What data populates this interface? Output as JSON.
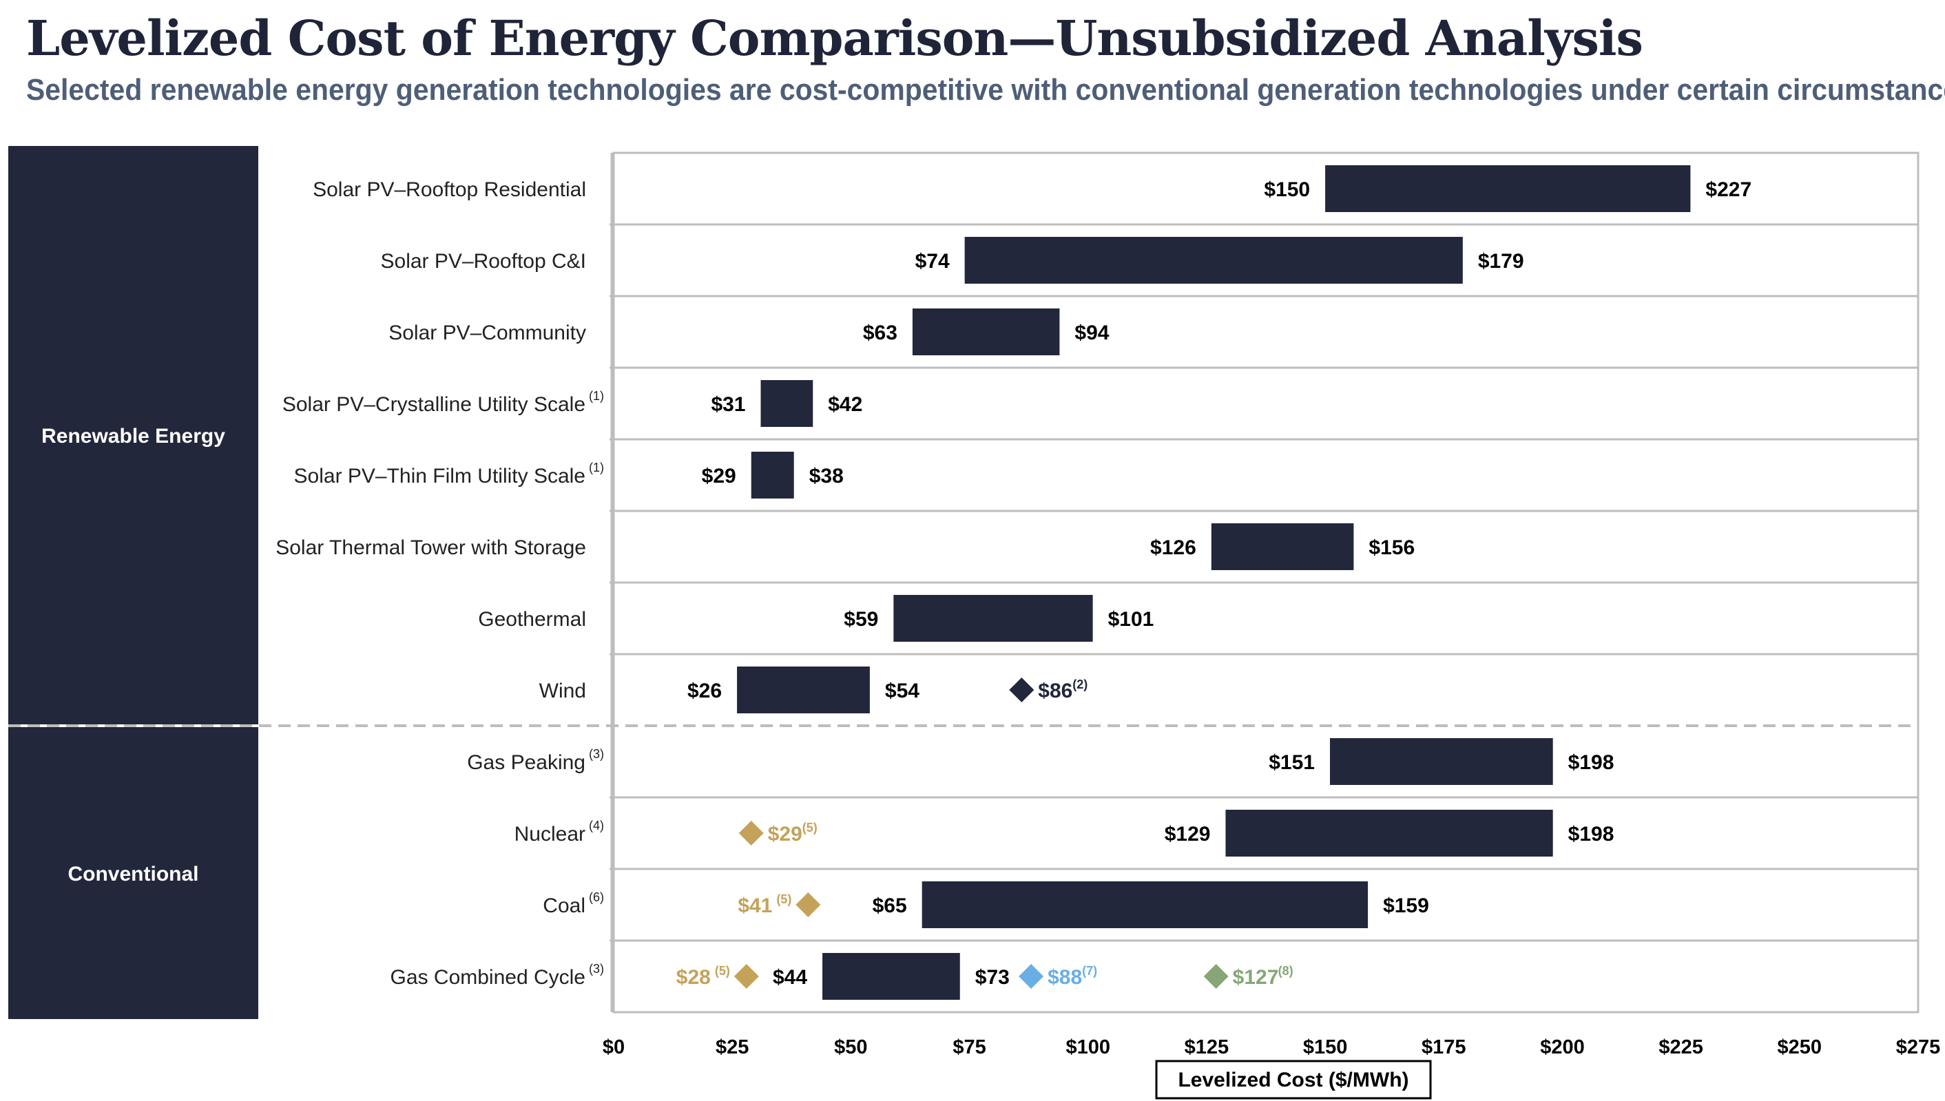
{
  "header": {
    "title": "Levelized Cost of Energy Comparison—Unsubsidized Analysis",
    "subtitle": "Selected renewable energy generation technologies are cost-competitive with conventional generation technologies under certain circumstances"
  },
  "colors": {
    "bar": "#22273c",
    "group_panel": "#22273c",
    "gold_marker": "#c4a25a",
    "blue_marker": "#6aaee6",
    "green_marker": "#87a678",
    "wind_marker": "#22273c",
    "grid": "#bdbdbd"
  },
  "chart_data": {
    "type": "bar",
    "orientation": "horizontal-range",
    "xlabel": "Levelized Cost ($/MWh)",
    "xlim": [
      0,
      275
    ],
    "x_ticks": [
      0,
      25,
      50,
      75,
      100,
      125,
      150,
      175,
      200,
      225,
      250,
      275
    ],
    "x_tick_labels": [
      "$0",
      "$25",
      "$50",
      "$75",
      "$100",
      "$125",
      "$150",
      "$175",
      "$200",
      "$225",
      "$250",
      "$275"
    ],
    "groups": [
      {
        "name": "Renewable Energy",
        "rows": 8
      },
      {
        "name": "Conventional",
        "rows": 4
      }
    ],
    "categories": [
      {
        "label": "Solar PV–Rooftop Residential",
        "note": "",
        "low": 150,
        "high": 227,
        "low_label": "$150",
        "high_label": "$227",
        "markers": []
      },
      {
        "label": "Solar PV–Rooftop C&I",
        "note": "",
        "low": 74,
        "high": 179,
        "low_label": "$74",
        "high_label": "$179",
        "markers": []
      },
      {
        "label": "Solar PV–Community",
        "note": "",
        "low": 63,
        "high": 94,
        "low_label": "$63",
        "high_label": "$94",
        "markers": []
      },
      {
        "label": "Solar PV–Crystalline Utility Scale",
        "note": "(1)",
        "low": 31,
        "high": 42,
        "low_label": "$31",
        "high_label": "$42",
        "markers": []
      },
      {
        "label": "Solar PV–Thin Film Utility Scale",
        "note": "(1)",
        "low": 29,
        "high": 38,
        "low_label": "$29",
        "high_label": "$38",
        "markers": []
      },
      {
        "label": "Solar Thermal Tower with Storage",
        "note": "",
        "low": 126,
        "high": 156,
        "low_label": "$126",
        "high_label": "$156",
        "markers": []
      },
      {
        "label": "Geothermal",
        "note": "",
        "low": 59,
        "high": 101,
        "low_label": "$59",
        "high_label": "$101",
        "markers": []
      },
      {
        "label": "Wind",
        "note": "",
        "low": 26,
        "high": 54,
        "low_label": "$26",
        "high_label": "$54",
        "markers": [
          {
            "value": 86,
            "label": "$86",
            "note": "(2)",
            "color": "wind_marker",
            "side": "right"
          }
        ]
      },
      {
        "label": "Gas Peaking",
        "note": "(3)",
        "low": 151,
        "high": 198,
        "low_label": "$151",
        "high_label": "$198",
        "markers": []
      },
      {
        "label": "Nuclear",
        "note": "(4)",
        "low": 129,
        "high": 198,
        "low_label": "$129",
        "high_label": "$198",
        "markers": [
          {
            "value": 29,
            "label": "$29",
            "note": "(5)",
            "color": "gold_marker",
            "side": "right"
          }
        ]
      },
      {
        "label": "Coal",
        "note": "(6)",
        "low": 65,
        "high": 159,
        "low_label": "$65",
        "high_label": "$159",
        "markers": [
          {
            "value": 41,
            "label": "$41",
            "note": "(5)",
            "color": "gold_marker",
            "side": "left"
          }
        ]
      },
      {
        "label": "Gas Combined Cycle",
        "note": "(3)",
        "low": 44,
        "high": 73,
        "low_label": "$44",
        "high_label": "$73",
        "markers": [
          {
            "value": 28,
            "label": "$28",
            "note": "(5)",
            "color": "gold_marker",
            "side": "left"
          },
          {
            "value": 88,
            "label": "$88",
            "note": "(7)",
            "color": "blue_marker",
            "side": "right"
          },
          {
            "value": 127,
            "label": "$127",
            "note": "(8)",
            "color": "green_marker",
            "side": "right"
          }
        ]
      }
    ]
  }
}
